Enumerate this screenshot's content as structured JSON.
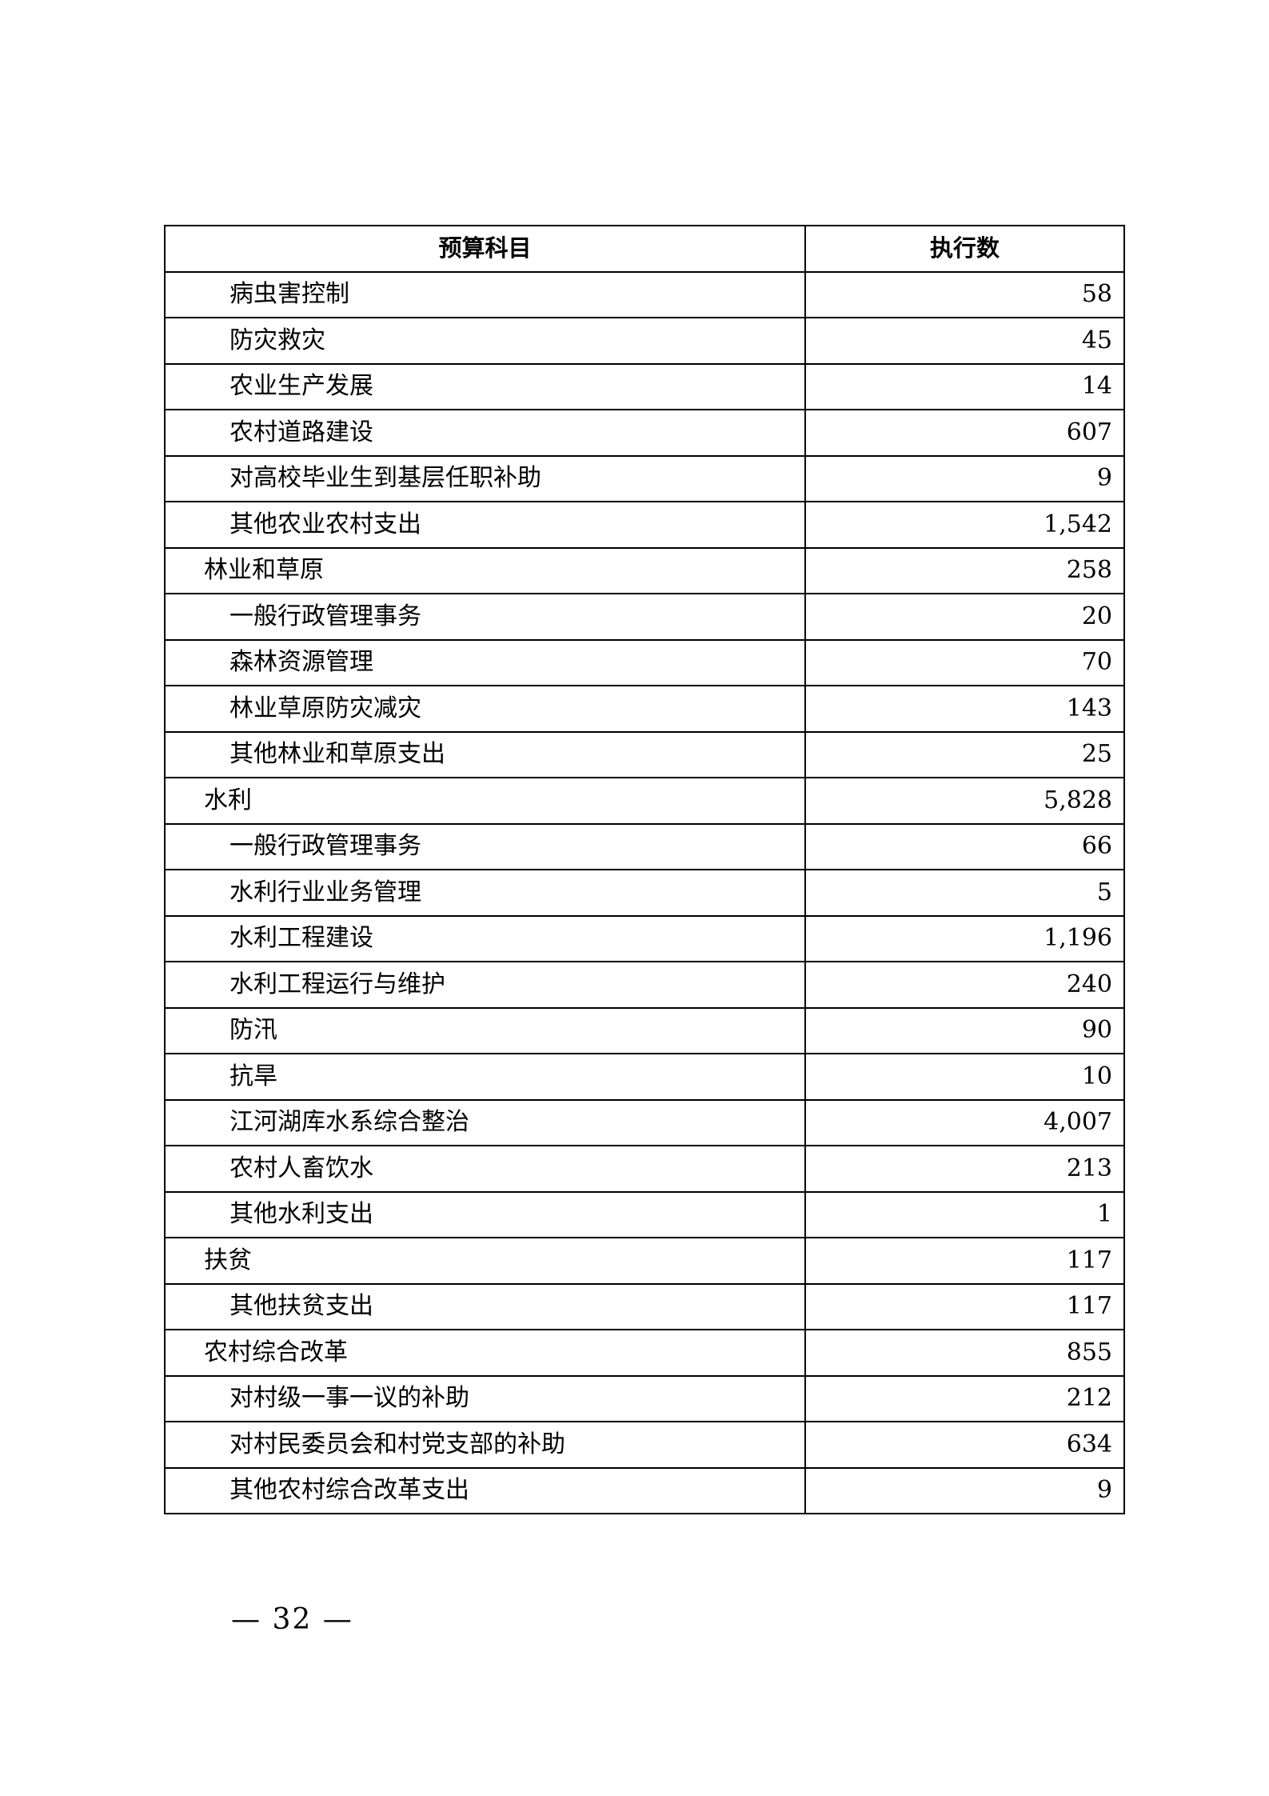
{
  "table": {
    "headers": [
      "预算科目",
      "执行数"
    ],
    "rows": [
      {
        "name": "病虫害控制",
        "level": 2,
        "value": "58"
      },
      {
        "name": "防灾救灾",
        "level": 2,
        "value": "45"
      },
      {
        "name": "农业生产发展",
        "level": 2,
        "value": "14"
      },
      {
        "name": "农村道路建设",
        "level": 2,
        "value": "607"
      },
      {
        "name": "对高校毕业生到基层任职补助",
        "level": 2,
        "value": "9"
      },
      {
        "name": "其他农业农村支出",
        "level": 2,
        "value": "1,542"
      },
      {
        "name": "林业和草原",
        "level": 1,
        "value": "258"
      },
      {
        "name": "一般行政管理事务",
        "level": 2,
        "value": "20"
      },
      {
        "name": "森林资源管理",
        "level": 2,
        "value": "70"
      },
      {
        "name": "林业草原防灾减灾",
        "level": 2,
        "value": "143"
      },
      {
        "name": "其他林业和草原支出",
        "level": 2,
        "value": "25"
      },
      {
        "name": "水利",
        "level": 1,
        "value": "5,828"
      },
      {
        "name": "一般行政管理事务",
        "level": 2,
        "value": "66"
      },
      {
        "name": "水利行业业务管理",
        "level": 2,
        "value": "5"
      },
      {
        "name": "水利工程建设",
        "level": 2,
        "value": "1,196"
      },
      {
        "name": "水利工程运行与维护",
        "level": 2,
        "value": "240"
      },
      {
        "name": "防汛",
        "level": 2,
        "value": "90"
      },
      {
        "name": "抗旱",
        "level": 2,
        "value": "10"
      },
      {
        "name": "江河湖库水系综合整治",
        "level": 2,
        "value": "4,007"
      },
      {
        "name": "农村人畜饮水",
        "level": 2,
        "value": "213"
      },
      {
        "name": "其他水利支出",
        "level": 2,
        "value": "1"
      },
      {
        "name": "扶贫",
        "level": 1,
        "value": "117"
      },
      {
        "name": "其他扶贫支出",
        "level": 2,
        "value": "117"
      },
      {
        "name": "农村综合改革",
        "level": 1,
        "value": "855"
      },
      {
        "name": "对村级一事一议的补助",
        "level": 2,
        "value": "212"
      },
      {
        "name": "对村民委员会和村党支部的补助",
        "level": 2,
        "value": "634"
      },
      {
        "name": "其他农村综合改革支出",
        "level": 2,
        "value": "9"
      }
    ]
  },
  "page_number": "— 32 —"
}
